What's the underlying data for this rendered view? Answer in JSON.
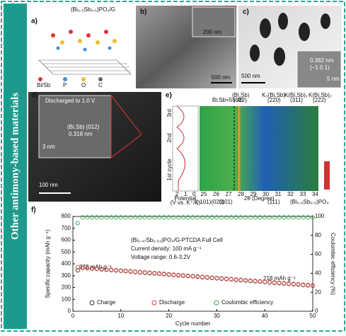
{
  "side_label": "Other antimony-based materials",
  "panels": {
    "a": {
      "label": "a)",
      "title": "(Bi₀.₅Sb₀.₅)PO₄/G",
      "legend": [
        "Bi/Sb",
        "P",
        "O",
        "C"
      ]
    },
    "b": {
      "label": "b)",
      "inset_scale": "200 nm",
      "scale": "500 nm"
    },
    "c": {
      "label": "c)",
      "scale": "500 nm",
      "spacing": "0.362 nm",
      "plane": "(−1 0 1)",
      "inset_scale": "5 nm"
    },
    "d": {
      "label": "d)",
      "note": "Discharged to 1.0 V",
      "phase": "(Bi,Sb) (012)",
      "spacing": "0.318 nm",
      "inset_scale": "3 nm",
      "scale": "100 nm"
    },
    "e": {
      "label": "e)",
      "ratio": "Bi:Sb=55:45",
      "peaks": [
        "(Bi,Sb)",
        "(012)",
        "K₃(Bi,Sb)",
        "(220)",
        "K(Bi,Sb)₂",
        "(311)",
        "K(Bi,Sb)₂",
        "(222)"
      ],
      "cycles": [
        "3rd",
        "2nd",
        "1st cycle"
      ],
      "potential_ticks": [
        "2",
        "1",
        "0"
      ],
      "potential_label": "Potential",
      "potential_unit": "(V vs. K⁺/K)",
      "xlabel": "2θ (Degree)",
      "xticks": [
        "25",
        "26",
        "27",
        "28",
        "29",
        "30",
        "31",
        "32",
        "33",
        "34"
      ],
      "bottom_peaks": [
        "(-101)(020)",
        "(101)",
        "(111)"
      ],
      "phase": "(Bi₀.₅Sb₀.₅)PO₄"
    },
    "f": {
      "label": "f)"
    }
  },
  "chart_data": {
    "type": "scatter",
    "title": "(Bi₀.₄₇Sb₀.₅₃)PO₄/G-PTCDA Full Cell",
    "annotations": [
      "Current density: 100 mA g⁻¹",
      "Voltage range: 0.6-3.2V",
      "372 mAh g⁻¹",
      "218 mAh g⁻¹"
    ],
    "xlabel": "Cycle number",
    "ylabel": "Specific capacity (mAh g⁻¹)",
    "y2label": "Coulombic efficiency (%)",
    "x": [
      1,
      2,
      3,
      4,
      5,
      6,
      7,
      8,
      9,
      10,
      11,
      12,
      13,
      14,
      15,
      16,
      17,
      18,
      19,
      20,
      21,
      22,
      23,
      24,
      25,
      26,
      27,
      28,
      29,
      30,
      31,
      32,
      33,
      34,
      35,
      36,
      37,
      38,
      39,
      40,
      41,
      42,
      43,
      44,
      45,
      46,
      47,
      48,
      49,
      50
    ],
    "xlim": [
      0,
      50
    ],
    "xticks": [
      0,
      10,
      20,
      30,
      40,
      50
    ],
    "ylim": [
      0,
      800
    ],
    "yticks": [
      0,
      100,
      200,
      300,
      400,
      500,
      600,
      700,
      800
    ],
    "y2lim": [
      0,
      100
    ],
    "y2ticks": [
      0,
      20,
      40,
      60,
      80,
      100
    ],
    "series": [
      {
        "name": "Charge",
        "color": "#333333",
        "values": [
          345,
          366,
          363,
          360,
          357,
          353,
          350,
          347,
          344,
          341,
          338,
          335,
          331,
          328,
          325,
          322,
          319,
          316,
          313,
          309,
          306,
          303,
          300,
          297,
          294,
          291,
          287,
          284,
          281,
          278,
          275,
          272,
          269,
          265,
          262,
          259,
          256,
          253,
          250,
          247,
          243,
          240,
          237,
          234,
          231,
          228,
          225,
          221,
          218,
          215
        ]
      },
      {
        "name": "Discharge",
        "color": "#e0413a",
        "values": [
          372,
          369,
          366,
          363,
          360,
          356,
          353,
          350,
          347,
          344,
          341,
          338,
          334,
          331,
          328,
          325,
          322,
          319,
          316,
          312,
          309,
          306,
          303,
          300,
          297,
          294,
          290,
          287,
          284,
          281,
          278,
          275,
          272,
          268,
          265,
          262,
          259,
          256,
          253,
          250,
          246,
          243,
          240,
          237,
          234,
          231,
          228,
          224,
          221,
          218
        ]
      },
      {
        "name": "Coulombic efficiency",
        "color": "#3aa655",
        "axis": "y2",
        "values": [
          93,
          99,
          99,
          99,
          99,
          99,
          99,
          99,
          99,
          99,
          99,
          99,
          99,
          99,
          99,
          99,
          99,
          99,
          99,
          99,
          99,
          99,
          99,
          99,
          99,
          99,
          99,
          99,
          99,
          99,
          99,
          99,
          99,
          99,
          99,
          99,
          99,
          99,
          99,
          99,
          99,
          99,
          99,
          99,
          99,
          99,
          99,
          99,
          99,
          99
        ]
      }
    ]
  }
}
